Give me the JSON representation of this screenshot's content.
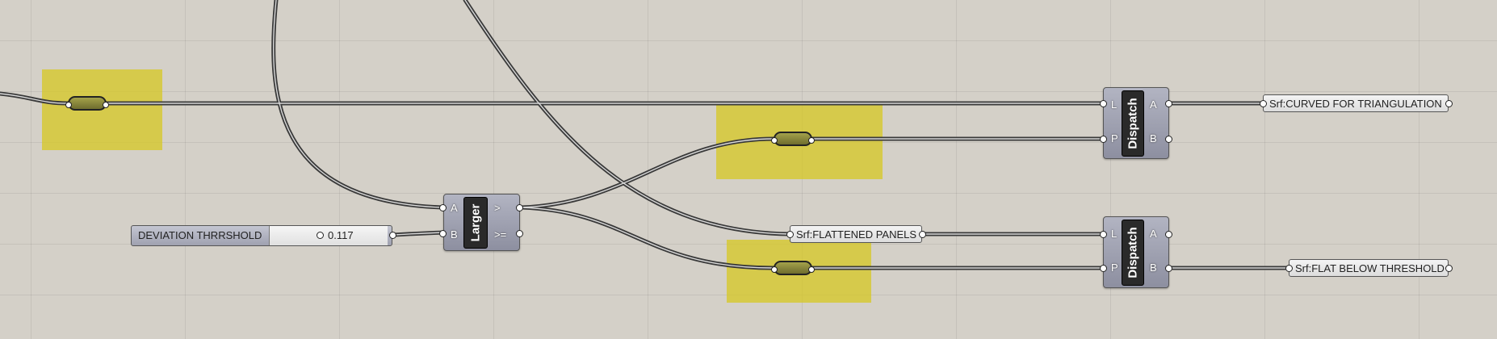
{
  "canvas": {
    "background": "#d4d0c8",
    "group_color": "#d6c828"
  },
  "slider": {
    "label": "DEVIATION THRRSHOLD",
    "value": "0.117"
  },
  "larger": {
    "name": "Larger",
    "input_a": "A",
    "input_b": "B",
    "output_gt": ">",
    "output_gte": ">="
  },
  "dispatch_top": {
    "name": "Dispatch",
    "input_l": "L",
    "input_p": "P",
    "output_a": "A",
    "output_b": "B"
  },
  "dispatch_bottom": {
    "name": "Dispatch",
    "input_l": "L",
    "input_p": "P",
    "output_a": "A",
    "output_b": "B"
  },
  "panels": {
    "curved": "Srf:CURVED FOR TRIANGULATION",
    "flattened": "Srf:FLATTENED PANELS",
    "flat_below": "Srf:FLAT BELOW THRESHOLD"
  }
}
